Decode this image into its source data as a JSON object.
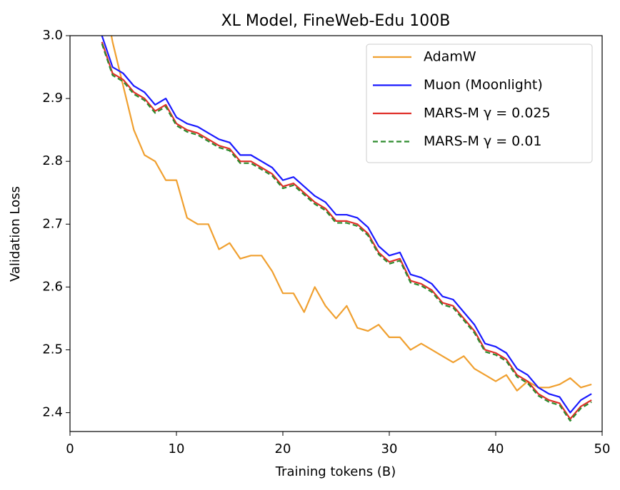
{
  "chart_data": {
    "type": "line",
    "title": "XL Model, FineWeb-Edu 100B",
    "x_label": "Training tokens (B)",
    "y_label": "Validation Loss",
    "x": [
      3,
      4,
      5,
      6,
      7,
      8,
      9,
      10,
      11,
      12,
      13,
      14,
      15,
      16,
      17,
      18,
      19,
      20,
      21,
      22,
      23,
      24,
      25,
      26,
      27,
      28,
      29,
      30,
      31,
      32,
      33,
      34,
      35,
      36,
      37,
      38,
      39,
      40,
      41,
      42,
      43,
      44,
      45,
      46,
      47,
      48,
      49
    ],
    "series": [
      {
        "name": "AdamW",
        "color": "#f0a030",
        "linestyle": "solid",
        "values": [
          3.08,
          2.99,
          2.92,
          2.85,
          2.81,
          2.8,
          2.77,
          2.77,
          2.71,
          2.7,
          2.7,
          2.66,
          2.67,
          2.645,
          2.65,
          2.65,
          2.625,
          2.59,
          2.59,
          2.56,
          2.6,
          2.57,
          2.55,
          2.57,
          2.535,
          2.53,
          2.54,
          2.52,
          2.52,
          2.5,
          2.51,
          2.5,
          2.49,
          2.48,
          2.49,
          2.47,
          2.46,
          2.45,
          2.46,
          2.435,
          2.45,
          2.44,
          2.44,
          2.445,
          2.455,
          2.44,
          2.445
        ]
      },
      {
        "name": "Muon (Moonlight)",
        "color": "#1a1aff",
        "linestyle": "solid",
        "values": [
          3.0,
          2.95,
          2.94,
          2.92,
          2.91,
          2.89,
          2.9,
          2.87,
          2.86,
          2.855,
          2.845,
          2.835,
          2.83,
          2.81,
          2.81,
          2.8,
          2.79,
          2.77,
          2.775,
          2.76,
          2.745,
          2.735,
          2.715,
          2.715,
          2.71,
          2.695,
          2.665,
          2.65,
          2.655,
          2.62,
          2.615,
          2.605,
          2.585,
          2.58,
          2.56,
          2.54,
          2.51,
          2.505,
          2.495,
          2.47,
          2.46,
          2.44,
          2.43,
          2.425,
          2.4,
          2.42,
          2.43
        ]
      },
      {
        "name": "MARS-M γ = 0.025",
        "color": "#e0302a",
        "linestyle": "solid",
        "values": [
          2.99,
          2.94,
          2.93,
          2.91,
          2.9,
          2.88,
          2.89,
          2.86,
          2.85,
          2.845,
          2.835,
          2.825,
          2.82,
          2.8,
          2.8,
          2.79,
          2.78,
          2.76,
          2.765,
          2.75,
          2.735,
          2.725,
          2.705,
          2.705,
          2.7,
          2.685,
          2.655,
          2.64,
          2.645,
          2.61,
          2.605,
          2.595,
          2.575,
          2.57,
          2.55,
          2.53,
          2.5,
          2.495,
          2.485,
          2.46,
          2.45,
          2.43,
          2.42,
          2.415,
          2.39,
          2.41,
          2.42
        ]
      },
      {
        "name": "MARS-M γ = 0.01",
        "color": "#2e8b2e",
        "linestyle": "dashed",
        "values": [
          2.987,
          2.937,
          2.927,
          2.907,
          2.897,
          2.877,
          2.887,
          2.857,
          2.847,
          2.842,
          2.832,
          2.822,
          2.817,
          2.797,
          2.797,
          2.787,
          2.777,
          2.757,
          2.762,
          2.747,
          2.732,
          2.722,
          2.702,
          2.702,
          2.697,
          2.682,
          2.652,
          2.637,
          2.642,
          2.607,
          2.602,
          2.592,
          2.572,
          2.567,
          2.547,
          2.527,
          2.497,
          2.492,
          2.482,
          2.457,
          2.447,
          2.427,
          2.417,
          2.412,
          2.387,
          2.407,
          2.417
        ]
      }
    ],
    "xlim": [
      0,
      50
    ],
    "xticks": [
      0,
      10,
      20,
      30,
      40,
      50
    ],
    "ylim": [
      2.37,
      3.0
    ],
    "yticks": [
      2.4,
      2.5,
      2.6,
      2.7,
      2.8,
      2.9,
      {
        "value": 3,
        "label": "3.0"
      }
    ],
    "legend": "upper right"
  }
}
